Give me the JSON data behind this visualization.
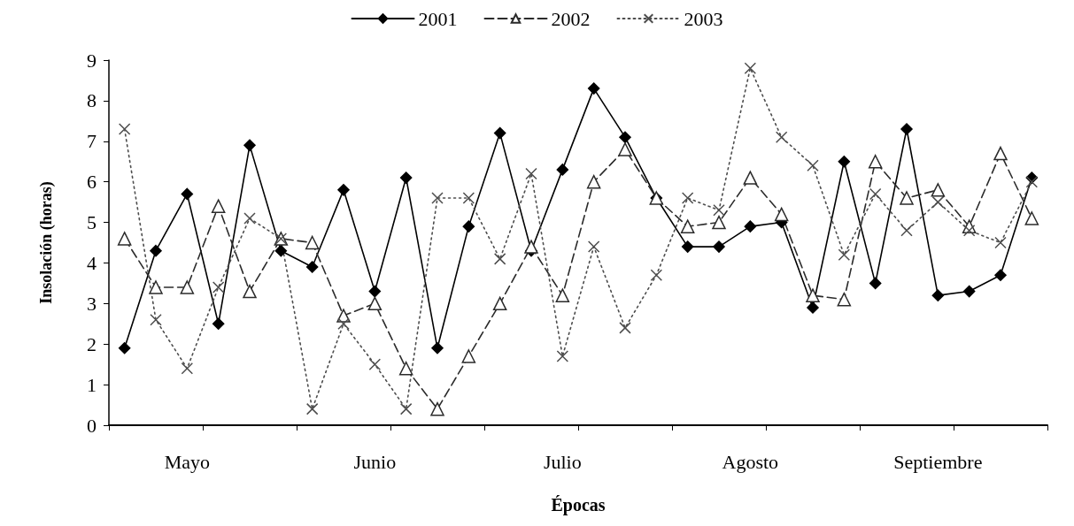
{
  "chart_data": {
    "type": "line",
    "xlabel": "Épocas",
    "ylabel": "Insolación (horas)",
    "categories": [
      null,
      null,
      "Mayo",
      null,
      null,
      null,
      null,
      null,
      "Junio",
      null,
      null,
      null,
      null,
      null,
      "Julio",
      null,
      null,
      null,
      null,
      null,
      "Agosto",
      null,
      null,
      null,
      null,
      null,
      "Septiembre",
      null,
      null,
      null
    ],
    "series": [
      {
        "name": "2001",
        "color": "#000000",
        "marker": "diamond",
        "line_style": "solid",
        "values": [
          1.9,
          4.3,
          5.7,
          2.5,
          6.9,
          4.3,
          3.9,
          5.8,
          3.3,
          6.1,
          1.9,
          4.9,
          7.2,
          4.3,
          6.3,
          8.3,
          7.1,
          5.6,
          4.4,
          4.4,
          4.9,
          5.0,
          2.9,
          6.5,
          3.5,
          7.3,
          3.2,
          3.3,
          3.7,
          6.1
        ]
      },
      {
        "name": "2002",
        "color": "#2b2b2b",
        "marker": "triangle",
        "line_style": "dashed",
        "values": [
          4.6,
          3.4,
          3.4,
          5.4,
          3.3,
          4.6,
          4.5,
          2.7,
          3.0,
          1.4,
          0.4,
          1.7,
          3.0,
          4.4,
          3.2,
          6.0,
          6.8,
          5.6,
          4.9,
          5.0,
          6.1,
          5.2,
          3.2,
          3.1,
          6.5,
          5.6,
          5.8,
          4.9,
          6.7,
          5.1
        ]
      },
      {
        "name": "2003",
        "color": "#4d4d4d",
        "marker": "cross",
        "line_style": "dotted",
        "values": [
          7.3,
          2.6,
          1.4,
          3.4,
          5.1,
          4.6,
          0.4,
          2.5,
          1.5,
          0.4,
          5.6,
          5.6,
          4.1,
          6.2,
          1.7,
          4.4,
          2.4,
          3.7,
          5.6,
          5.3,
          8.8,
          7.1,
          6.4,
          4.2,
          5.7,
          4.8,
          5.5,
          4.8,
          4.5,
          6.0
        ]
      }
    ],
    "ylim": [
      0,
      9
    ],
    "yticks": [
      0,
      1,
      2,
      3,
      4,
      5,
      6,
      7,
      8,
      9
    ],
    "grid": false,
    "legend": "top"
  }
}
